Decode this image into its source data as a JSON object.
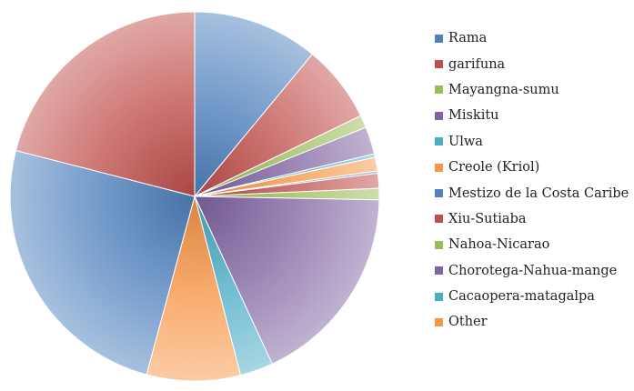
{
  "chart_data": {
    "type": "pie",
    "title": "",
    "slices": [
      {
        "label": "Rama",
        "value": 11.0,
        "color": "#4f81bd"
      },
      {
        "label": "garifuna",
        "value": 6.8,
        "color": "#c0504d"
      },
      {
        "label": "Mayangna-sumu",
        "value": 1.1,
        "color": "#9bbb59"
      },
      {
        "label": "Miskitu",
        "value": 2.4,
        "color": "#8064a2"
      },
      {
        "label": "Ulwa",
        "value": 0.3,
        "color": "#4bacc6"
      },
      {
        "label": "Creole (Kriol)",
        "value": 1.2,
        "color": "#f79646"
      },
      {
        "label": "Mestizo de la Costa Caribe",
        "value": 0.2,
        "color": "#4f81bd"
      },
      {
        "label": "Xiu-Sutiaba",
        "value": 1.3,
        "color": "#c0504d"
      },
      {
        "label": "Nahoa-Nicarao",
        "value": 1.0,
        "color": "#9bbb59"
      },
      {
        "label": "Chorotega-Nahua-mange",
        "value": 17.8,
        "color": "#8064a2"
      },
      {
        "label": "Cacaopera-matagalpa",
        "value": 2.9,
        "color": "#4bacc6"
      },
      {
        "label": "Other",
        "value": 8.2,
        "color": "#f79646"
      },
      {
        "label": "",
        "value": 24.8,
        "color": "#4f81bd"
      },
      {
        "label": "",
        "value": 21.0,
        "color": "#c0504d"
      }
    ],
    "legend": {
      "position": "right",
      "entries": [
        {
          "label": "Rama",
          "color": "#4f81bd"
        },
        {
          "label": "garifuna",
          "color": "#c0504d"
        },
        {
          "label": "Mayangna-sumu",
          "color": "#9bbb59"
        },
        {
          "label": "Miskitu",
          "color": "#8064a2"
        },
        {
          "label": "Ulwa",
          "color": "#4bacc6"
        },
        {
          "label": "Creole (Kriol)",
          "color": "#f79646"
        },
        {
          "label": "Mestizo de la Costa Caribe",
          "color": "#4f81bd"
        },
        {
          "label": "Xiu-Sutiaba",
          "color": "#c0504d"
        },
        {
          "label": "Nahoa-Nicarao",
          "color": "#9bbb59"
        },
        {
          "label": "Chorotega-Nahua-mange",
          "color": "#8064a2"
        },
        {
          "label": "Cacaopera-matagalpa",
          "color": "#4bacc6"
        },
        {
          "label": "Other",
          "color": "#f79646"
        }
      ]
    }
  }
}
